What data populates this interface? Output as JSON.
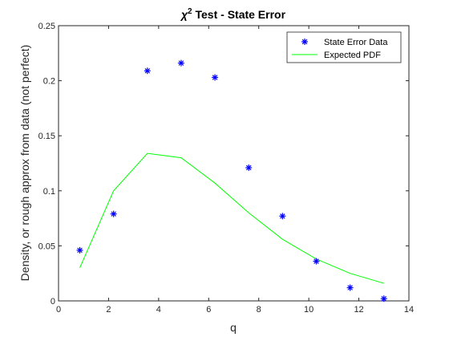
{
  "chart_data": {
    "type": "line",
    "title_prefix": "χ",
    "title_sup": "2",
    "title_suffix": " Test - State Error",
    "xlabel": "q",
    "ylabel": "Density, or rough approx from data (not perfect)",
    "xlim": [
      0,
      14
    ],
    "ylim": [
      0,
      0.25
    ],
    "xticks": [
      0,
      2,
      4,
      6,
      8,
      10,
      12,
      14
    ],
    "xtick_labels": [
      "0",
      "2",
      "4",
      "6",
      "8",
      "10",
      "12",
      "14"
    ],
    "yticks": [
      0,
      0.05,
      0.1,
      0.15,
      0.2,
      0.25
    ],
    "ytick_labels": [
      "0",
      "0.05",
      "0.1",
      "0.15",
      "0.2",
      "0.25"
    ],
    "grid": false,
    "legend_position": "top-right",
    "series": [
      {
        "name": "State Error Data",
        "kind": "scatter",
        "marker": "asterisk",
        "color": "#0000ff",
        "x": [
          0.85,
          2.2,
          3.55,
          4.9,
          6.25,
          7.6,
          8.95,
          10.3,
          11.65,
          13.0
        ],
        "y": [
          0.046,
          0.079,
          0.209,
          0.216,
          0.203,
          0.121,
          0.077,
          0.036,
          0.012,
          0.002
        ]
      },
      {
        "name": "Expected PDF",
        "kind": "line",
        "color": "#00ff00",
        "x": [
          0.85,
          2.2,
          3.55,
          4.9,
          6.25,
          7.6,
          8.95,
          10.3,
          11.65,
          13.0
        ],
        "y": [
          0.03,
          0.1,
          0.134,
          0.13,
          0.107,
          0.08,
          0.056,
          0.038,
          0.025,
          0.016
        ]
      }
    ]
  }
}
